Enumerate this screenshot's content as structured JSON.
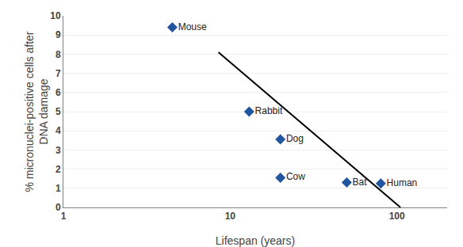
{
  "chart_data": {
    "type": "scatter",
    "xlabel": "Lifespan (years)",
    "ylabel": "% micronuclei-positive cells after\nDNA damage",
    "log": "x",
    "grid": "y",
    "xlim": [
      1,
      200
    ],
    "ylim": [
      0,
      10
    ],
    "xticks": [
      1,
      10,
      100
    ],
    "yticks": [
      0,
      1,
      2,
      3,
      4,
      5,
      6,
      7,
      8,
      9,
      10
    ],
    "series": [
      {
        "type": "line",
        "color": "#000000",
        "line_style": "solid",
        "x": [
          8.5,
          105.0
        ],
        "values": [
          8.1,
          0.0
        ]
      },
      {
        "type": "scatter",
        "color": "#2255A0",
        "marker": "diamond",
        "x": [
          4.5,
          13.0,
          20.0,
          20.0,
          50.0,
          80.0
        ],
        "values": [
          9.4,
          5.0,
          3.55,
          1.55,
          1.3,
          1.25
        ],
        "annotations": [
          "Mouse",
          "Rabbit",
          "Dog",
          "Cow",
          "Bat",
          "Human"
        ]
      }
    ]
  }
}
